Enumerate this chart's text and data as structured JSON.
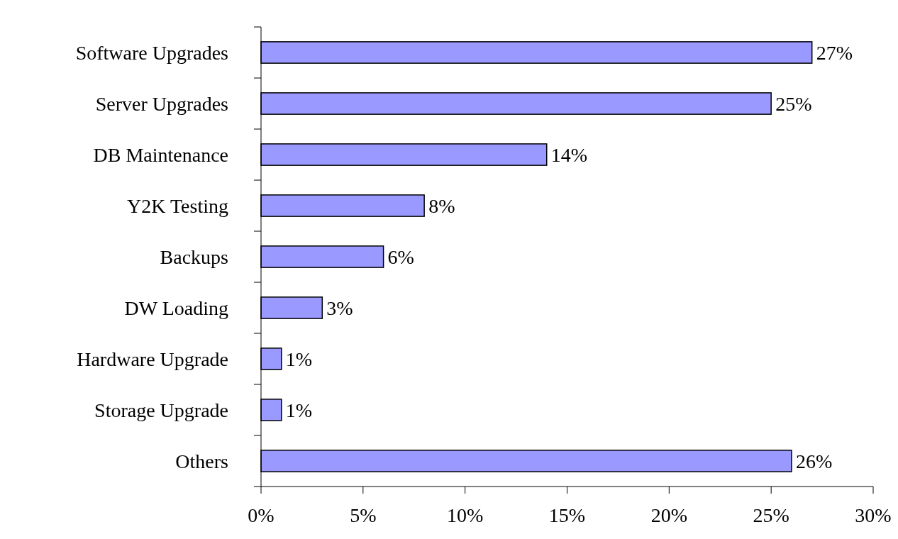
{
  "chart_data": {
    "type": "bar",
    "orientation": "horizontal",
    "categories": [
      "Software Upgrades",
      "Server Upgrades",
      "DB Maintenance",
      "Y2K Testing",
      "Backups",
      "DW Loading",
      "Hardware Upgrade",
      "Storage Upgrade",
      "Others"
    ],
    "values": [
      27,
      25,
      14,
      8,
      6,
      3,
      1,
      1,
      26
    ],
    "value_labels": [
      "27%",
      "25%",
      "14%",
      "8%",
      "6%",
      "3%",
      "1%",
      "1%",
      "26%"
    ],
    "color": "#9999ff",
    "xlim": [
      0,
      30
    ],
    "xticks": [
      {
        "value": 0,
        "label": "0%"
      },
      {
        "value": 5,
        "label": "5%"
      },
      {
        "value": 10,
        "label": "10%"
      },
      {
        "value": 15,
        "label": "15%"
      },
      {
        "value": 20,
        "label": "20%"
      },
      {
        "value": 25,
        "label": "25%"
      },
      {
        "value": 30,
        "label": "30%"
      }
    ],
    "grid": false
  }
}
